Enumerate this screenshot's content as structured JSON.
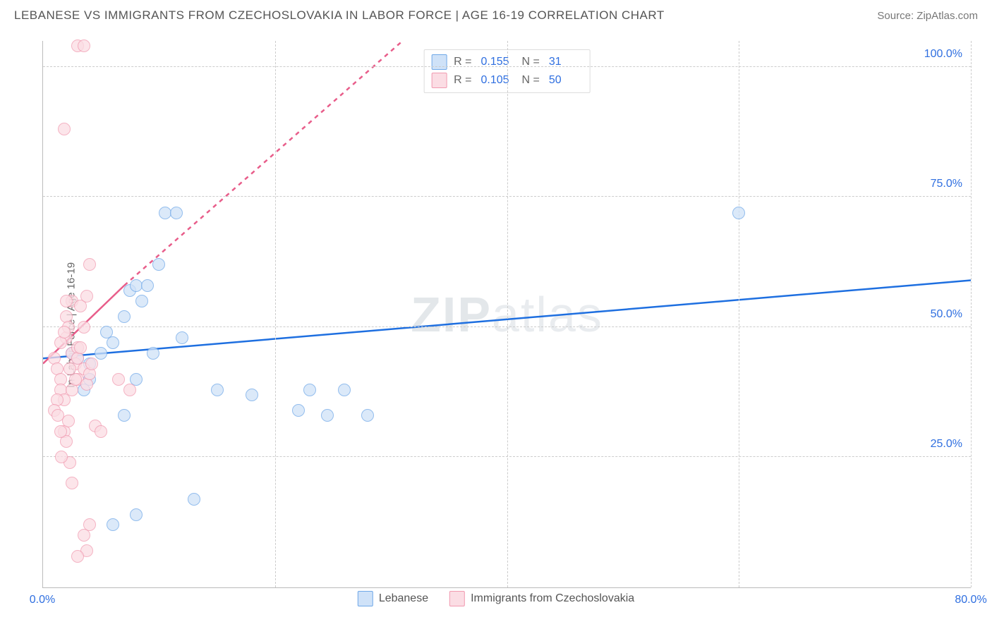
{
  "title": "LEBANESE VS IMMIGRANTS FROM CZECHOSLOVAKIA IN LABOR FORCE | AGE 16-19 CORRELATION CHART",
  "source_label": "Source: ",
  "source_name": "ZipAtlas.com",
  "ylabel": "In Labor Force | Age 16-19",
  "watermark": "ZIPatlas",
  "chart": {
    "type": "scatter",
    "xlim": [
      0,
      80
    ],
    "ylim": [
      0,
      105
    ],
    "xtick_positions": [
      0,
      80
    ],
    "xtick_labels": [
      "0.0%",
      "80.0%"
    ],
    "ytick_positions": [
      25,
      50,
      75,
      100
    ],
    "ytick_labels": [
      "25.0%",
      "50.0%",
      "75.0%",
      "100.0%"
    ],
    "background_color": "#ffffff",
    "grid_color": "#cccccc",
    "vgrid_positions": [
      20,
      40,
      60,
      80
    ],
    "series": [
      {
        "key": "lebanese",
        "label": "Lebanese",
        "color_fill": "#cfe2f8",
        "color_stroke": "#6fa8e8",
        "R": "0.155",
        "N": "31",
        "trend": {
          "x1": 0,
          "y1": 44,
          "x2": 80,
          "y2": 59,
          "color": "#1e6fe0",
          "dash": false
        },
        "points": [
          [
            2.5,
            45
          ],
          [
            3.0,
            44
          ],
          [
            4.0,
            43
          ],
          [
            5.0,
            45
          ],
          [
            5.5,
            49
          ],
          [
            6.0,
            47
          ],
          [
            7.0,
            52
          ],
          [
            7.5,
            57
          ],
          [
            8.0,
            58
          ],
          [
            8.0,
            40
          ],
          [
            8.5,
            55
          ],
          [
            9.0,
            58
          ],
          [
            10.0,
            62
          ],
          [
            10.5,
            72
          ],
          [
            11.5,
            72
          ],
          [
            12.0,
            48
          ],
          [
            15.0,
            38
          ],
          [
            18.0,
            37
          ],
          [
            22.0,
            34
          ],
          [
            24.5,
            33
          ],
          [
            28.0,
            33
          ],
          [
            60.0,
            72
          ],
          [
            7.0,
            33
          ],
          [
            6.0,
            12
          ],
          [
            8.0,
            14
          ],
          [
            13.0,
            17
          ],
          [
            4.0,
            40
          ],
          [
            3.5,
            38
          ],
          [
            9.5,
            45
          ],
          [
            23.0,
            38
          ],
          [
            26.0,
            38
          ]
        ]
      },
      {
        "key": "czech",
        "label": "Immigrants from Czechoslovakia",
        "color_fill": "#fbdde4",
        "color_stroke": "#f19ab0",
        "R": "0.105",
        "N": "50",
        "trend_solid": {
          "x1": 0,
          "y1": 43,
          "x2": 7,
          "y2": 58,
          "color": "#e85d8a",
          "dash": false
        },
        "trend_dash": {
          "x1": 7,
          "y1": 58,
          "x2": 31,
          "y2": 105,
          "color": "#e85d8a",
          "dash": true
        },
        "points": [
          [
            1.0,
            44
          ],
          [
            1.2,
            42
          ],
          [
            1.5,
            40
          ],
          [
            1.5,
            38
          ],
          [
            1.8,
            36
          ],
          [
            2.0,
            48
          ],
          [
            2.0,
            52
          ],
          [
            2.2,
            50
          ],
          [
            2.5,
            55
          ],
          [
            2.5,
            45
          ],
          [
            2.8,
            43
          ],
          [
            3.0,
            40
          ],
          [
            3.0,
            46
          ],
          [
            3.2,
            54
          ],
          [
            3.5,
            50
          ],
          [
            3.8,
            56
          ],
          [
            4.0,
            62
          ],
          [
            1.8,
            30
          ],
          [
            2.0,
            28
          ],
          [
            2.3,
            24
          ],
          [
            2.5,
            20
          ],
          [
            1.5,
            30
          ],
          [
            2.2,
            32
          ],
          [
            4.5,
            31
          ],
          [
            5.0,
            30
          ],
          [
            1.8,
            88
          ],
          [
            3.0,
            104
          ],
          [
            3.5,
            104
          ],
          [
            4.0,
            12
          ],
          [
            3.5,
            10
          ],
          [
            3.8,
            7
          ],
          [
            3.0,
            6
          ],
          [
            1.2,
            36
          ],
          [
            1.0,
            34
          ],
          [
            1.5,
            47
          ],
          [
            1.8,
            49
          ],
          [
            2.0,
            55
          ],
          [
            2.3,
            42
          ],
          [
            2.5,
            38
          ],
          [
            2.8,
            40
          ],
          [
            3.0,
            44
          ],
          [
            3.2,
            46
          ],
          [
            3.5,
            42
          ],
          [
            3.8,
            39
          ],
          [
            4.0,
            41
          ],
          [
            4.2,
            43
          ],
          [
            1.3,
            33
          ],
          [
            1.6,
            25
          ],
          [
            6.5,
            40
          ],
          [
            7.5,
            38
          ]
        ]
      }
    ]
  },
  "rn_legend": {
    "rows": [
      {
        "swatch_fill": "#cfe2f8",
        "swatch_stroke": "#6fa8e8",
        "R_label": "R =",
        "R": "0.155",
        "N_label": "N =",
        "N": "31"
      },
      {
        "swatch_fill": "#fbdde4",
        "swatch_stroke": "#f19ab0",
        "R_label": "R =",
        "R": "0.105",
        "N_label": "N =",
        "N": "50"
      }
    ]
  },
  "bottom_legend": [
    {
      "fill": "#cfe2f8",
      "stroke": "#6fa8e8",
      "label": "Lebanese"
    },
    {
      "fill": "#fbdde4",
      "stroke": "#f19ab0",
      "label": "Immigrants from Czechoslovakia"
    }
  ]
}
